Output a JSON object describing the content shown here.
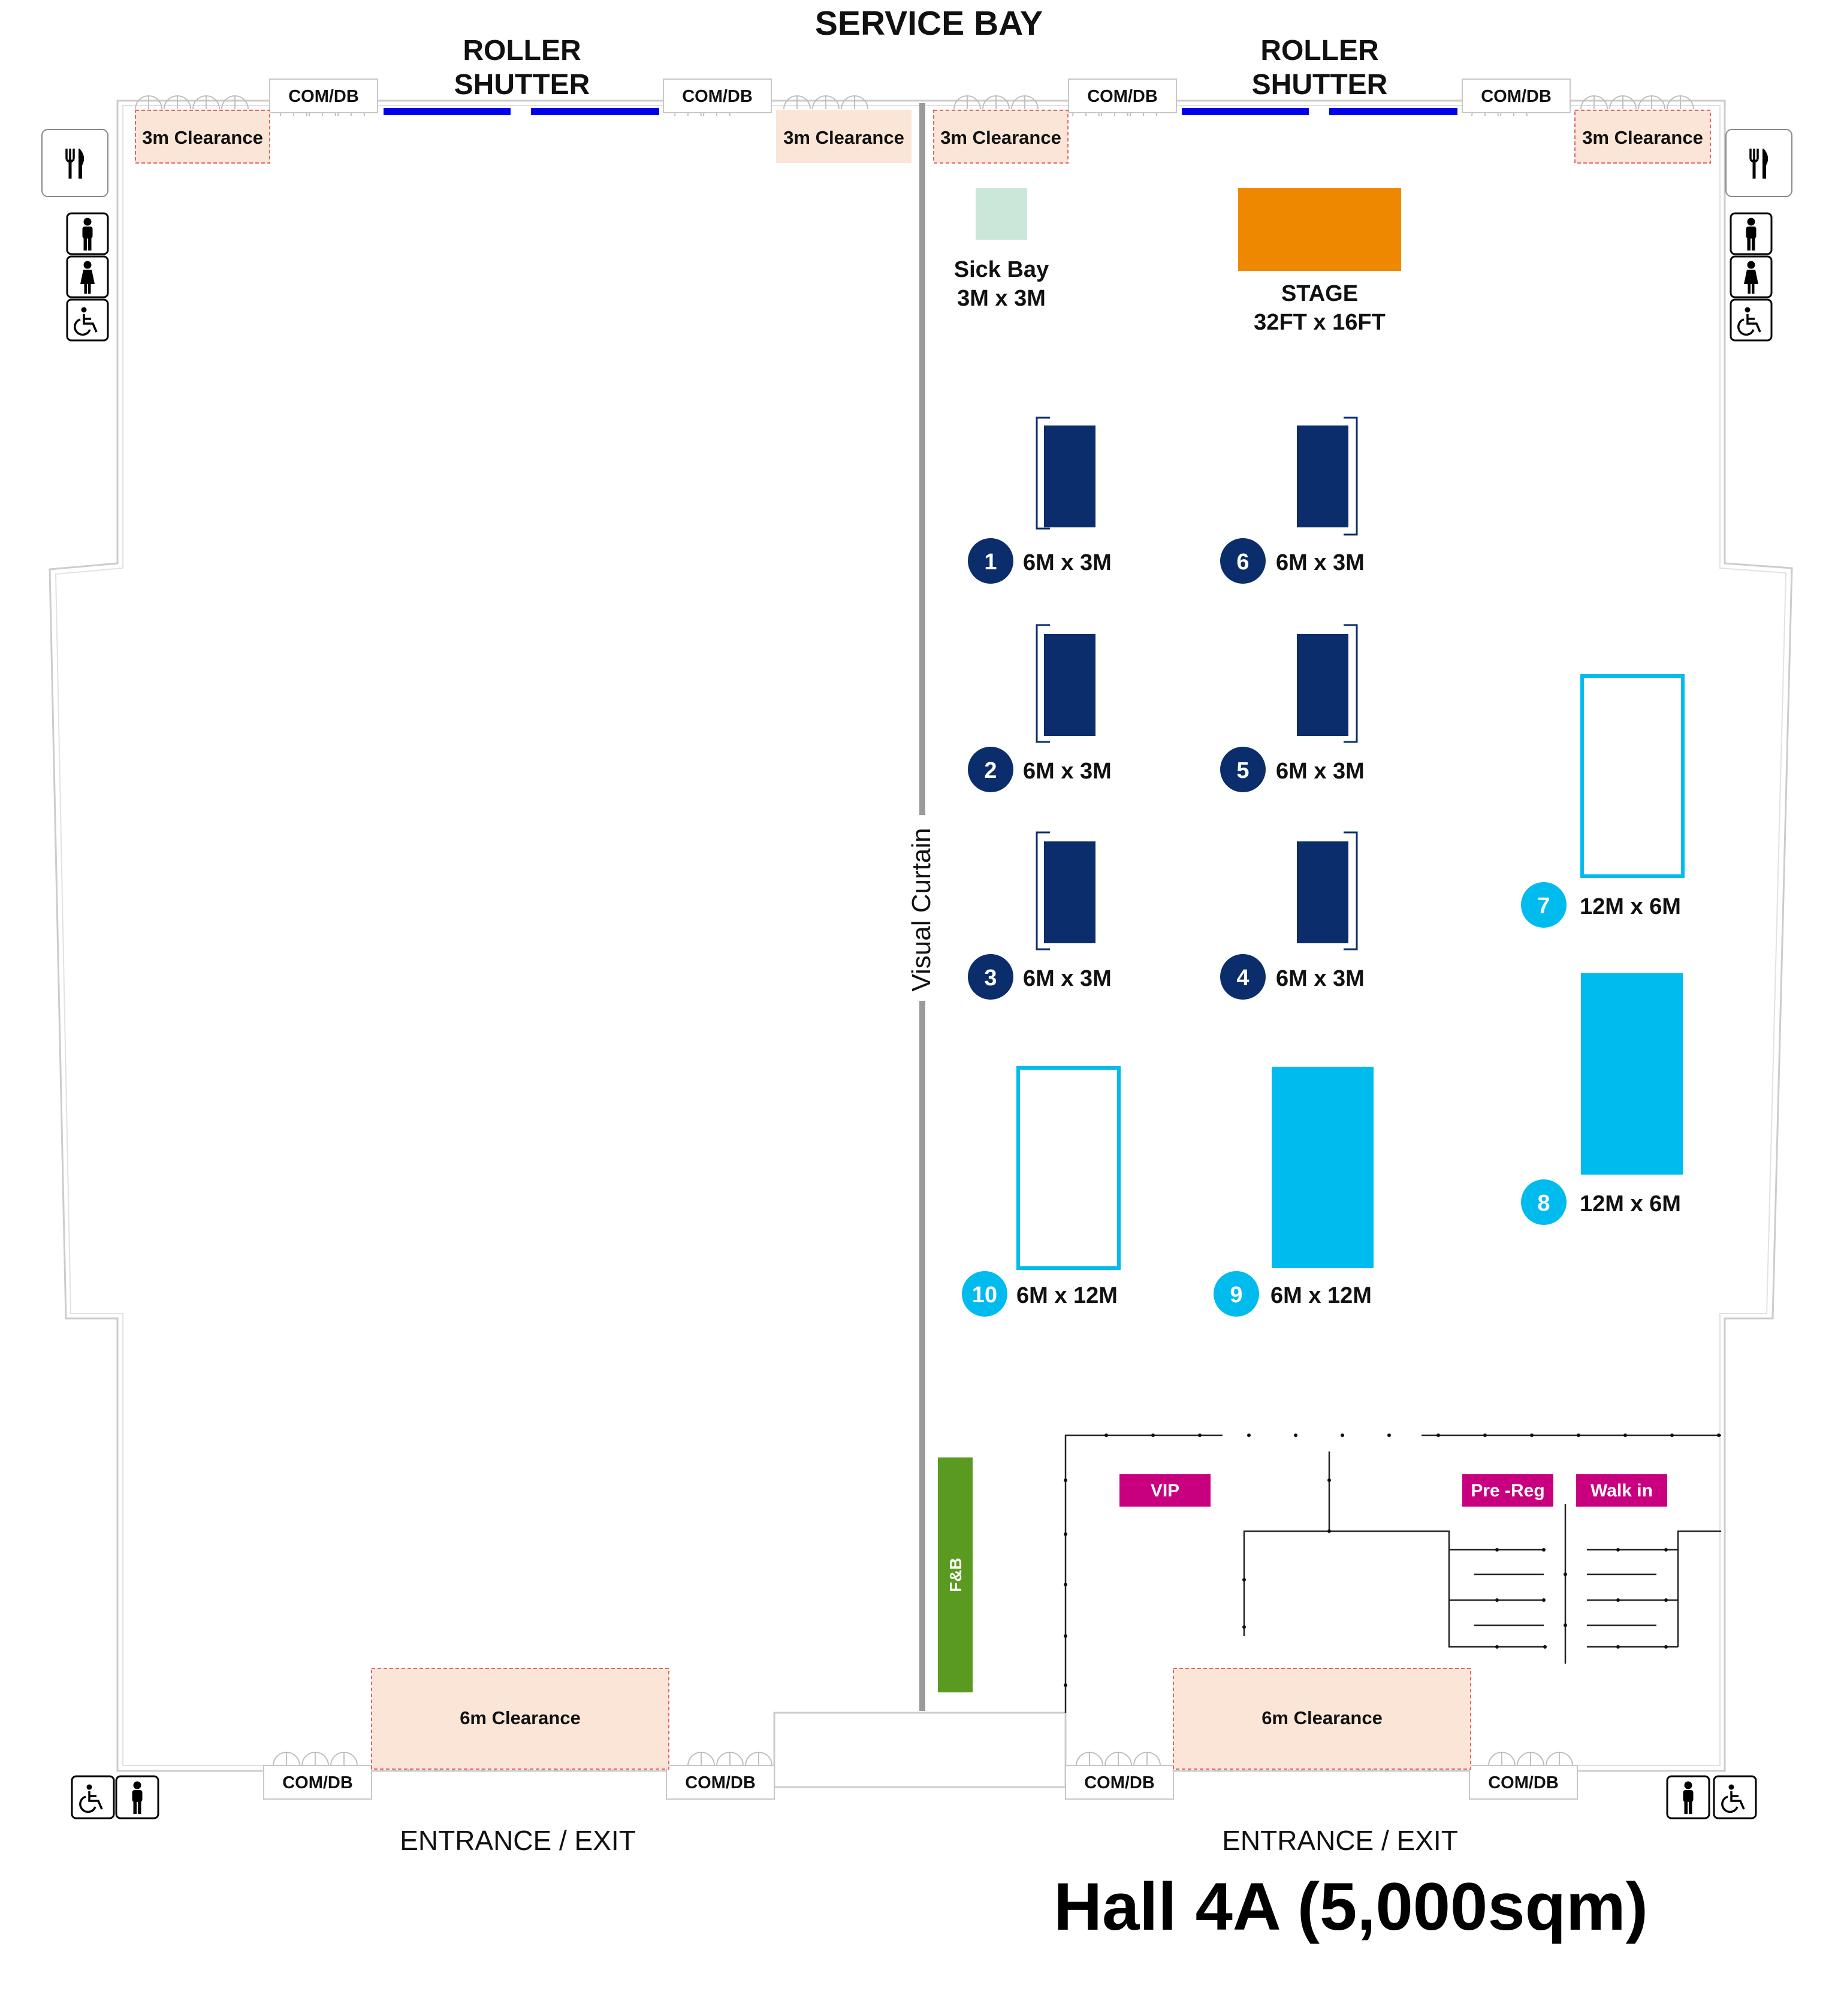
{
  "header": {
    "service_bay": "SERVICE BAY",
    "roller_line1": "ROLLER",
    "roller_line2": "SHUTTER"
  },
  "utility": {
    "comdb": "COM/DB"
  },
  "clearances": {
    "three_m": "3m Clearance",
    "six_m": "6m Clearance"
  },
  "features": {
    "sick_bay": "Sick Bay",
    "sick_bay_size": "3M x 3M",
    "stage": "STAGE",
    "stage_size": "32FT x 16FT",
    "curtain": "Visual Curtain",
    "fnb": "F&B"
  },
  "booths": [
    {
      "num": "1",
      "size": "6M x 3M"
    },
    {
      "num": "2",
      "size": "6M x 3M"
    },
    {
      "num": "3",
      "size": "6M x 3M"
    },
    {
      "num": "4",
      "size": "6M x 3M"
    },
    {
      "num": "5",
      "size": "6M x 3M"
    },
    {
      "num": "6",
      "size": "6M x 3M"
    },
    {
      "num": "7",
      "size": "12M x 6M"
    },
    {
      "num": "8",
      "size": "12M x 6M"
    },
    {
      "num": "9",
      "size": "6M x 12M"
    },
    {
      "num": "10",
      "size": "6M x 12M"
    }
  ],
  "registration": {
    "vip": "VIP",
    "prereg": "Pre -Reg",
    "walkin": "Walk in"
  },
  "footer": {
    "entrance": "ENTRANCE / EXIT",
    "title": "Hall 4A (5,000sqm)"
  },
  "colors": {
    "navy": "#0b2d6b",
    "cyan": "#00bbee",
    "stage": "#ee8800",
    "sick_bay": "#c9e8da",
    "fnb": "#5a9a21",
    "magenta": "#c8007f",
    "clearance": "#fbe5d6",
    "shutter": "#0000ee",
    "curtain": "#9a9a9a"
  },
  "icons": [
    "cutlery-icon",
    "male-toilet-icon",
    "female-toilet-icon",
    "wheelchair-icon"
  ]
}
